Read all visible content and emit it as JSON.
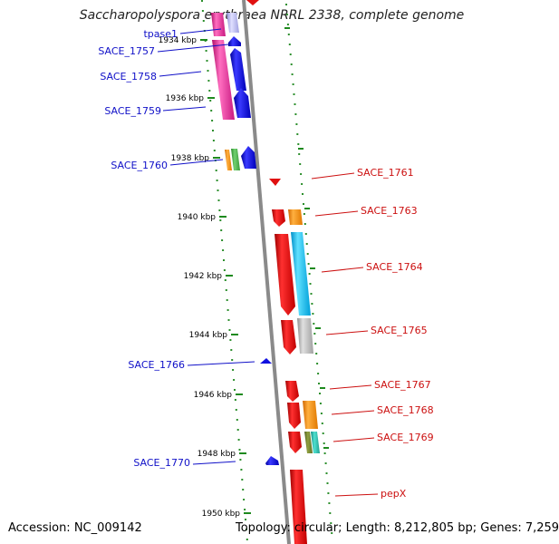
{
  "title": "Saccharopolyspora erythraea NRRL 2338, complete genome",
  "footer": {
    "accession": "Accession: NC_009142",
    "topology": "Topology: circular; Length: 8,212,805 bp; Genes: 7,259"
  },
  "colors": {
    "backbone": "#8a8a8a",
    "tick": "#1e8a1e",
    "dot": "#2d8f2d",
    "left_label": "#1010c8",
    "right_label": "#cc1010"
  },
  "kbp_marks": [
    "1934 kbp",
    "1936 kbp",
    "1938 kbp",
    "1940 kbp",
    "1942 kbp",
    "1944 kbp",
    "1946 kbp",
    "1948 kbp",
    "1950 kbp"
  ],
  "left_genes": [
    "tpase1",
    "SACE_1757",
    "SACE_1758",
    "SACE_1759",
    "SACE_1760",
    "SACE_1766",
    "SACE_1770"
  ],
  "right_genes": [
    "SACE_1761",
    "SACE_1763",
    "SACE_1764",
    "SACE_1765",
    "SACE_1767",
    "SACE_1768",
    "SACE_1769",
    "pepX"
  ]
}
